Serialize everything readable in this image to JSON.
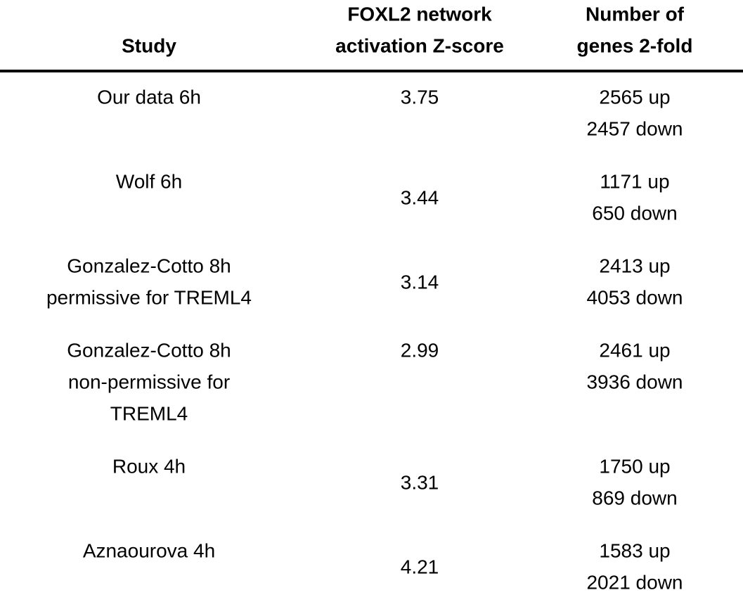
{
  "table": {
    "header": [
      [
        "Study"
      ],
      [
        "FOXL2 network",
        "activation Z-score"
      ],
      [
        "Number of",
        "genes 2-fold"
      ]
    ],
    "rows": [
      [
        [
          "Our data 6h"
        ],
        3.75,
        [
          "2565 up",
          "2457 down"
        ]
      ],
      [
        [
          "Wolf 6h"
        ],
        3.44,
        [
          "1171 up",
          "650 down"
        ]
      ],
      [
        [
          "Gonzalez-Cotto 8h",
          "permissive for TREML4"
        ],
        3.14,
        [
          "2413 up",
          "4053 down"
        ]
      ],
      [
        [
          "Gonzalez-Cotto 8h",
          "non-permissive for",
          "TREML4"
        ],
        2.99,
        [
          "2461 up",
          "3936 down"
        ]
      ],
      [
        [
          "Roux 4h"
        ],
        3.31,
        [
          "1750 up",
          "869 down"
        ]
      ],
      [
        [
          "Aznaourova 4h"
        ],
        4.21,
        [
          "1583 up",
          "2021 down"
        ]
      ]
    ]
  }
}
